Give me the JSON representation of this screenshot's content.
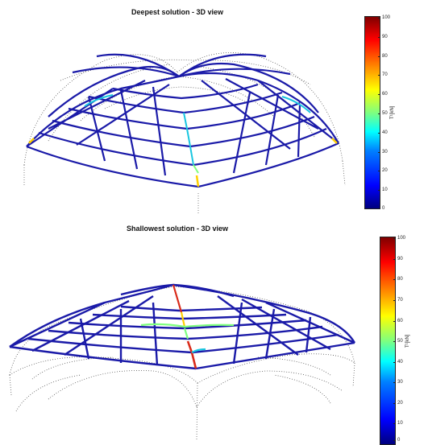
{
  "figures": [
    {
      "title": "Deepest solution - 3D view",
      "colorbar": {
        "label": "T¹[kN]",
        "ticks": [
          "100",
          "90",
          "80",
          "70",
          "60",
          "50",
          "40",
          "30",
          "20",
          "10",
          "0"
        ]
      }
    },
    {
      "title": "Shallowest solution - 3D view",
      "colorbar": {
        "label": "T¹[kN]",
        "ticks": [
          "100",
          "90",
          "80",
          "70",
          "60",
          "50",
          "40",
          "30",
          "20",
          "10",
          "0"
        ]
      }
    }
  ],
  "colors": {
    "dominant_member": "#1a1aa8",
    "mid_member": "#19c6e0",
    "high_member": "#d92b1a",
    "guide_dots": "#333333"
  }
}
